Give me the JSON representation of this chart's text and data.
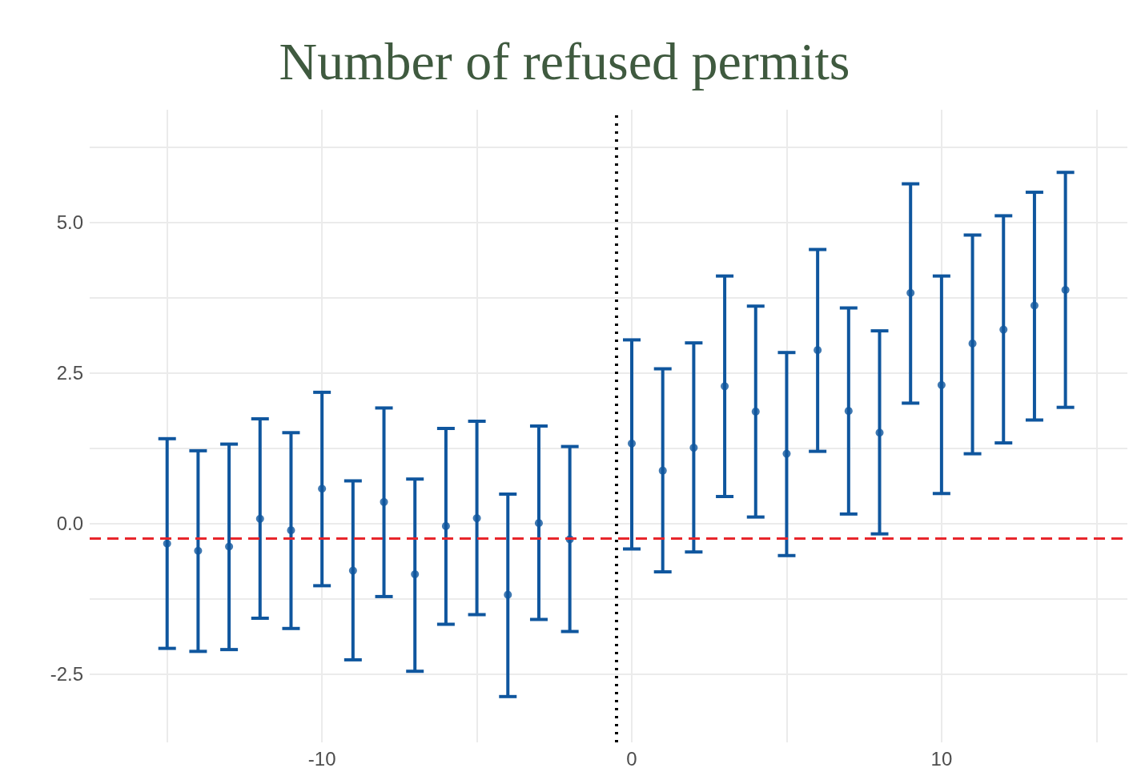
{
  "chart_data": {
    "type": "scatter",
    "title": "Number of refused permits",
    "x": [
      -15,
      -14,
      -13,
      -12,
      -11,
      -10,
      -9,
      -8,
      -7,
      -6,
      -5,
      -4,
      -3,
      -2,
      0,
      1,
      2,
      3,
      4,
      5,
      6,
      7,
      8,
      9,
      10,
      11,
      12,
      13,
      14
    ],
    "series": [
      {
        "color": "#0f569e",
        "values": [
          -0.33,
          -0.45,
          -0.38,
          0.08,
          -0.11,
          0.58,
          -0.78,
          0.36,
          -0.84,
          -0.04,
          0.09,
          -1.18,
          0.01,
          -0.26,
          1.33,
          0.88,
          1.26,
          2.28,
          1.86,
          1.16,
          2.88,
          1.87,
          1.51,
          3.83,
          2.3,
          2.99,
          3.22,
          3.62,
          3.88
        ],
        "errors": [
          [
            -2.07,
            1.41
          ],
          [
            -2.12,
            1.21
          ],
          [
            -2.09,
            1.32
          ],
          [
            -1.57,
            1.74
          ],
          [
            -1.74,
            1.51
          ],
          [
            -1.03,
            2.18
          ],
          [
            -2.26,
            0.71
          ],
          [
            -1.21,
            1.92
          ],
          [
            -2.45,
            0.74
          ],
          [
            -1.67,
            1.58
          ],
          [
            -1.51,
            1.7
          ],
          [
            -2.87,
            0.49
          ],
          [
            -1.59,
            1.62
          ],
          [
            -1.79,
            1.28
          ],
          [
            -0.42,
            3.05
          ],
          [
            -0.8,
            2.57
          ],
          [
            -0.47,
            3.0
          ],
          [
            0.45,
            4.11
          ],
          [
            0.11,
            3.61
          ],
          [
            -0.53,
            2.84
          ],
          [
            1.2,
            4.55
          ],
          [
            0.16,
            3.58
          ],
          [
            -0.17,
            3.2
          ],
          [
            2.0,
            5.64
          ],
          [
            0.5,
            4.11
          ],
          [
            1.16,
            4.79
          ],
          [
            1.34,
            5.11
          ],
          [
            1.72,
            5.5
          ],
          [
            1.93,
            5.83
          ]
        ]
      }
    ],
    "xlim": [
      -17.5,
      16
    ],
    "ylim": [
      -3.63,
      6.87
    ],
    "xticks": [
      {
        "value": -15,
        "label": null
      },
      -10,
      {
        "value": -5,
        "label": null
      },
      0,
      {
        "value": 5,
        "label": null
      },
      10,
      {
        "value": 15,
        "label": null
      }
    ],
    "yticks": [
      {
        "value": -2.5,
        "label": "-2.5"
      },
      {
        "value": -1.25,
        "label": null
      },
      {
        "value": 0,
        "label": "0.0"
      },
      {
        "value": 1.25,
        "label": null
      },
      {
        "value": 2.5,
        "label": "2.5"
      },
      {
        "value": 3.75,
        "label": null
      },
      {
        "value": 5,
        "label": "5.0"
      },
      {
        "value": 6.25,
        "label": null
      }
    ],
    "ref_lines": [
      {
        "axis": "x",
        "value": -0.5,
        "color": "#000000",
        "line_style": "dotted"
      },
      {
        "axis": "y",
        "value": -0.25,
        "color": "#e8262b",
        "line_style": "dashed"
      }
    ],
    "grid": true,
    "marker": "circle"
  }
}
